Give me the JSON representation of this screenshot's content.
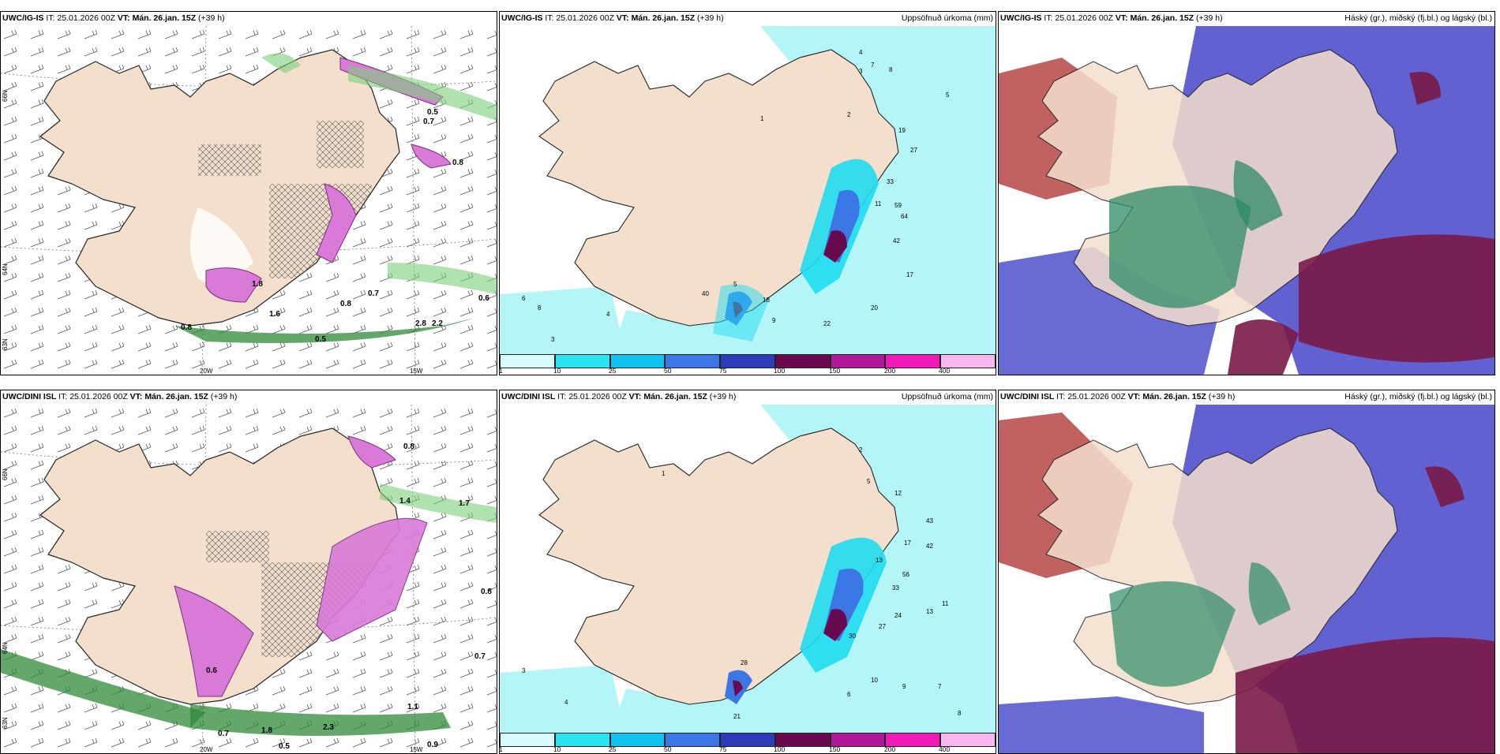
{
  "panels": [
    {
      "model": "UWC/IG-IS",
      "it_label": "IT:",
      "it_value": "25.01.2026 00Z",
      "vt_label": "VT:",
      "vt_value": "Mán. 26.jan. 15Z",
      "lead": "(+39 h)",
      "right_title": "",
      "lat_labels": [
        "66N",
        "64N",
        "63N"
      ],
      "lon_labels": [
        "20W",
        "15W"
      ],
      "values": [
        "0.5",
        "0.7",
        "0.8",
        "0.6",
        "0.7",
        "0.8",
        "0.5",
        "1.8",
        "1.6",
        "0.8",
        "2.8",
        "2.2"
      ]
    },
    {
      "model": "UWC/IG-IS",
      "it_label": "IT:",
      "it_value": "25.01.2026 00Z",
      "vt_label": "VT:",
      "vt_value": "Mán. 26.jan. 15Z",
      "lead": "(+39 h)",
      "right_title": "Uppsöfnuð úrkoma (mm)",
      "values": [
        "4",
        "7",
        "8",
        "5",
        "3",
        "2",
        "19",
        "27",
        "33",
        "11",
        "59",
        "64",
        "42",
        "17",
        "20",
        "22",
        "40",
        "18",
        "9",
        "6",
        "8",
        "4",
        "3",
        "5",
        "1"
      ]
    },
    {
      "model": "UWC/IG-IS",
      "it_label": "IT:",
      "it_value": "25.01.2026 00Z",
      "vt_label": "VT:",
      "vt_value": "Mán. 26.jan. 15Z",
      "lead": "(+39 h)",
      "right_title": "Háský (gr.), miðský (fj.bl.) og lágský (bl.)"
    },
    {
      "model": "UWC/DINI ISL",
      "it_label": "IT:",
      "it_value": "25.01.2026 00Z",
      "vt_label": "VT:",
      "vt_value": "Mán. 26.jan. 15Z",
      "lead": "(+39 h)",
      "right_title": "",
      "lat_labels": [
        "66N",
        "64N",
        "63N"
      ],
      "lon_labels": [
        "20W",
        "15W"
      ],
      "values": [
        "0.8",
        "1.4",
        "1.7",
        "0.8",
        "0.7",
        "0.5",
        "0.9",
        "1.1",
        "0.7",
        "1.8",
        "0.6",
        "2.3"
      ]
    },
    {
      "model": "UWC/DINI ISL",
      "it_label": "IT:",
      "it_value": "25.01.2026 00Z",
      "vt_label": "VT:",
      "vt_value": "Mán. 26.jan. 15Z",
      "lead": "(+39 h)",
      "right_title": "Uppsöfnuð úrkoma (mm)",
      "values": [
        "2",
        "5",
        "12",
        "43",
        "42",
        "17",
        "13",
        "56",
        "33",
        "11",
        "24",
        "27",
        "30",
        "13",
        "10",
        "28",
        "21",
        "9",
        "6",
        "8",
        "7",
        "4",
        "3",
        "1"
      ]
    },
    {
      "model": "UWC/DINI ISL",
      "it_label": "IT:",
      "it_value": "25.01.2026 00Z",
      "vt_label": "VT:",
      "vt_value": "Mán. 26.jan. 15Z",
      "lead": "(+39 h)",
      "right_title": "Háský (gr.), miðský (fj.bl.) og lágský (bl.)"
    }
  ],
  "colorbar": {
    "ticks": [
      "1",
      "10",
      "25",
      "50",
      "75",
      "100",
      "150",
      "200",
      "400"
    ],
    "colors": [
      "#d7fbfb",
      "#2be3f0",
      "#10c3ee",
      "#3c77e6",
      "#2e3cb8",
      "#6a0a4e",
      "#b0179a",
      "#f01ab8",
      "#f7b8f0"
    ]
  },
  "colors": {
    "land": "#f4dfcc",
    "precip_light": "#b4f6f8",
    "precip_mid": "#1fdcef",
    "high_cloud": "#2e8b67",
    "mid_cloud": "#3f3fc4",
    "low_cloud": "#8b1a4a",
    "snow_pink": "#d97ad9",
    "green_band": "#2f8a3a"
  }
}
